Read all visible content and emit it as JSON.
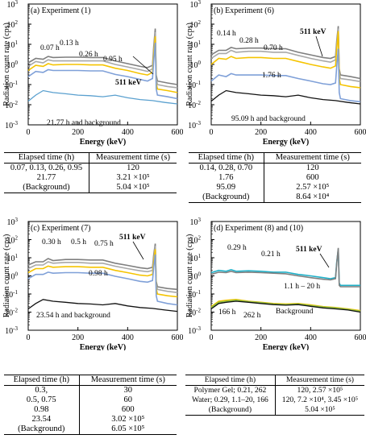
{
  "ylabel": "Radiation count rate (cps)",
  "xlabel": "Energy (keV)",
  "xticks": [
    "0",
    "200",
    "400",
    "600"
  ],
  "colors": {
    "dark": "#7f7f7f",
    "mid": "#a8a8a8",
    "gold": "#f5c400",
    "gold2": "#e6d96a",
    "blue": "#7fa0d8",
    "blue2": "#5aa0cf",
    "navy": "#2e5fa0",
    "cyan": "#1fb0c8",
    "green": "#8cbe44",
    "bg": "#111111"
  },
  "chart_data": [
    {
      "type": "line",
      "title": "(a) Experiment (1)",
      "xlabel": "Energy (keV)",
      "ylabel": "Radiation count rate (cps)",
      "xlim": [
        0,
        600
      ],
      "ylim": [
        0.001,
        1000
      ],
      "yscale": "log",
      "annotations": [
        "0.07 h",
        "0.13 h",
        "0.26 h",
        "0.95 h",
        "511 keV",
        "21.77 h and background"
      ],
      "series": [
        {
          "x": [
            0,
            30,
            60,
            80,
            100,
            150,
            200,
            250,
            300,
            350,
            400,
            450,
            480,
            500,
            505,
            511,
            515,
            520,
            560,
            600
          ],
          "y": [
            1.2,
            2,
            1.8,
            2.5,
            2.2,
            2.3,
            2.3,
            2.2,
            2.2,
            1.5,
            1.1,
            0.8,
            0.7,
            0.9,
            8,
            60,
            0.3,
            0.15,
            0.12,
            0.1
          ]
        },
        {
          "x": [
            0,
            30,
            60,
            80,
            100,
            150,
            200,
            250,
            300,
            350,
            400,
            450,
            480,
            500,
            505,
            511,
            515,
            520,
            560,
            600
          ],
          "y": [
            0.8,
            1.4,
            1.2,
            1.7,
            1.5,
            1.5,
            1.5,
            1.5,
            1.5,
            1,
            0.75,
            0.55,
            0.45,
            0.6,
            5,
            40,
            0.2,
            0.1,
            0.08,
            0.07
          ]
        },
        {
          "x": [
            0,
            30,
            60,
            80,
            100,
            150,
            200,
            250,
            300,
            350,
            400,
            450,
            480,
            500,
            505,
            511,
            515,
            520,
            560,
            600
          ],
          "y": [
            0.5,
            0.9,
            0.8,
            1.1,
            0.95,
            1,
            1,
            0.95,
            0.95,
            0.65,
            0.5,
            0.35,
            0.3,
            0.4,
            3,
            25,
            0.12,
            0.06,
            0.05,
            0.04
          ]
        },
        {
          "x": [
            0,
            30,
            60,
            80,
            100,
            150,
            200,
            250,
            300,
            350,
            400,
            450,
            480,
            500,
            505,
            511,
            515,
            520,
            560,
            600
          ],
          "y": [
            0.25,
            0.45,
            0.4,
            0.55,
            0.5,
            0.5,
            0.5,
            0.48,
            0.48,
            0.32,
            0.25,
            0.18,
            0.15,
            0.2,
            1.5,
            12,
            0.06,
            0.03,
            0.025,
            0.02
          ]
        },
        {
          "x": [
            0,
            30,
            60,
            100,
            150,
            200,
            250,
            300,
            350,
            400,
            450,
            500,
            550,
            600
          ],
          "y": [
            0.015,
            0.03,
            0.05,
            0.04,
            0.035,
            0.03,
            0.028,
            0.025,
            0.03,
            0.022,
            0.018,
            0.016,
            0.013,
            0.011
          ]
        }
      ]
    },
    {
      "type": "line",
      "title": "(b) Experiment (6)",
      "xlabel": "Energy (keV)",
      "ylabel": "Radiation count rate (cps)",
      "xlim": [
        0,
        600
      ],
      "ylim": [
        0.001,
        1000
      ],
      "yscale": "log",
      "annotations": [
        "0.14 h",
        "0.28 h",
        "0.70 h",
        "511 keV",
        "1.76 h",
        "95.09 h and background"
      ],
      "series": [
        {
          "x": [
            0,
            30,
            60,
            80,
            100,
            150,
            200,
            250,
            300,
            350,
            400,
            450,
            480,
            500,
            505,
            511,
            515,
            520,
            560,
            600
          ],
          "y": [
            3,
            5,
            5,
            7,
            6,
            6.5,
            6.5,
            6,
            6,
            4,
            3,
            2.2,
            2,
            2.5,
            15,
            80,
            0.6,
            0.3,
            0.25,
            0.2
          ]
        },
        {
          "x": [
            0,
            30,
            60,
            80,
            100,
            150,
            200,
            250,
            300,
            350,
            400,
            450,
            480,
            500,
            505,
            511,
            515,
            520,
            560,
            600
          ],
          "y": [
            2,
            3.5,
            3.5,
            5,
            4,
            4.5,
            4.5,
            4,
            4,
            2.8,
            2,
            1.5,
            1.3,
            1.7,
            10,
            60,
            0.4,
            0.2,
            0.17,
            0.14
          ]
        },
        {
          "x": [
            0,
            30,
            60,
            80,
            100,
            150,
            200,
            250,
            300,
            350,
            400,
            450,
            480,
            500,
            505,
            511,
            515,
            520,
            560,
            600
          ],
          "y": [
            1,
            2,
            1.8,
            2.5,
            2,
            2.2,
            2.2,
            2,
            2,
            1.4,
            1,
            0.75,
            0.65,
            0.85,
            6,
            45,
            0.2,
            0.1,
            0.08,
            0.07
          ]
        },
        {
          "x": [
            0,
            30,
            60,
            80,
            100,
            150,
            200,
            250,
            300,
            350,
            400,
            450,
            480,
            500,
            505,
            511,
            515,
            520,
            560,
            600
          ],
          "y": [
            0.15,
            0.3,
            0.25,
            0.35,
            0.3,
            0.3,
            0.3,
            0.28,
            0.28,
            0.2,
            0.15,
            0.11,
            0.1,
            0.12,
            0.8,
            6,
            0.04,
            0.02,
            0.016,
            0.014
          ]
        },
        {
          "x": [
            0,
            30,
            60,
            100,
            150,
            200,
            250,
            300,
            350,
            400,
            450,
            500,
            550,
            600
          ],
          "y": [
            0.015,
            0.03,
            0.05,
            0.04,
            0.035,
            0.03,
            0.028,
            0.025,
            0.03,
            0.022,
            0.018,
            0.016,
            0.013,
            0.011
          ]
        }
      ]
    },
    {
      "type": "line",
      "title": "(c) Experiment (7)",
      "xlabel": "Energy (keV)",
      "ylabel": "Radiation count rate (cps)",
      "xlim": [
        0,
        600
      ],
      "ylim": [
        0.001,
        1000
      ],
      "yscale": "log",
      "annotations": [
        "0.30 h",
        "0.5 h",
        "0.75 h",
        "511 keV",
        "0.98 h",
        "23.54 h and background"
      ],
      "series": [
        {
          "x": [
            0,
            30,
            60,
            80,
            100,
            150,
            200,
            250,
            300,
            350,
            400,
            450,
            480,
            500,
            505,
            511,
            515,
            520,
            560,
            600
          ],
          "y": [
            4,
            6,
            6,
            9,
            7,
            8,
            8,
            7.5,
            7.5,
            5,
            3.8,
            2.8,
            2.5,
            3,
            15,
            60,
            0.5,
            0.25,
            0.2,
            0.18
          ]
        },
        {
          "x": [
            0,
            30,
            60,
            80,
            100,
            150,
            200,
            250,
            300,
            350,
            400,
            450,
            480,
            500,
            505,
            511,
            515,
            520,
            560,
            600
          ],
          "y": [
            2.5,
            4,
            4,
            6,
            5,
            5.5,
            5.5,
            5,
            5,
            3.4,
            2.5,
            1.9,
            1.7,
            2,
            10,
            45,
            0.35,
            0.18,
            0.14,
            0.12
          ]
        },
        {
          "x": [
            0,
            30,
            60,
            80,
            100,
            150,
            200,
            250,
            300,
            350,
            400,
            450,
            480,
            500,
            505,
            511,
            515,
            520,
            560,
            600
          ],
          "y": [
            1.5,
            2.5,
            2.5,
            3.5,
            3,
            3.2,
            3.2,
            3,
            3,
            2,
            1.5,
            1.1,
            1,
            1.2,
            6,
            30,
            0.2,
            0.1,
            0.08,
            0.07
          ]
        },
        {
          "x": [
            0,
            30,
            60,
            80,
            100,
            150,
            200,
            250,
            300,
            350,
            400,
            450,
            480,
            500,
            505,
            511,
            515,
            520,
            560,
            600
          ],
          "y": [
            0.7,
            1.2,
            1.2,
            1.6,
            1.4,
            1.5,
            1.5,
            1.4,
            1.4,
            0.95,
            0.7,
            0.5,
            0.45,
            0.55,
            3,
            15,
            0.08,
            0.04,
            0.03,
            0.025
          ]
        },
        {
          "x": [
            0,
            30,
            60,
            100,
            150,
            200,
            250,
            300,
            350,
            400,
            450,
            500,
            550,
            600
          ],
          "y": [
            0.015,
            0.03,
            0.05,
            0.04,
            0.035,
            0.03,
            0.028,
            0.025,
            0.03,
            0.022,
            0.018,
            0.016,
            0.013,
            0.011
          ]
        }
      ]
    },
    {
      "type": "line",
      "title": "(d) Experiment (8) and (10)",
      "xlabel": "Energy (keV)",
      "ylabel": "Radiation count rate (cps)",
      "xlim": [
        0,
        600
      ],
      "ylim": [
        0.001,
        1000
      ],
      "yscale": "log",
      "annotations": [
        "0.29 h",
        "0.21 h",
        "511 keV",
        "1.1 h – 20 h",
        "166 h",
        "262 h",
        "Background"
      ],
      "series": [
        {
          "x": [
            0,
            30,
            60,
            80,
            100,
            150,
            200,
            250,
            300,
            350,
            400,
            450,
            480,
            500,
            505,
            511,
            515,
            520,
            560,
            600
          ],
          "y": [
            1.5,
            2,
            1.8,
            2.2,
            1.8,
            1.9,
            1.8,
            1.6,
            1.6,
            1.2,
            1,
            0.8,
            0.7,
            0.8,
            6,
            30,
            0.4,
            0.3,
            0.3,
            0.3
          ]
        },
        {
          "x": [
            0,
            30,
            60,
            80,
            100,
            150,
            200,
            250,
            300,
            350,
            400,
            450,
            480,
            500,
            505,
            511,
            515,
            520,
            560,
            600
          ],
          "y": [
            1.2,
            1.6,
            1.5,
            1.8,
            1.5,
            1.6,
            1.5,
            1.4,
            1.3,
            1,
            0.8,
            0.65,
            0.6,
            0.7,
            5,
            35,
            0.3,
            0.25,
            0.25,
            0.25
          ]
        },
        {
          "x": [
            0,
            30,
            60,
            100,
            150,
            200,
            250,
            300,
            350,
            400,
            450,
            500,
            550,
            600
          ],
          "y": [
            0.02,
            0.04,
            0.045,
            0.05,
            0.04,
            0.035,
            0.03,
            0.028,
            0.03,
            0.025,
            0.02,
            0.018,
            0.015,
            0.012
          ]
        },
        {
          "x": [
            0,
            30,
            60,
            100,
            150,
            200,
            250,
            300,
            350,
            400,
            450,
            500,
            550,
            600
          ],
          "y": [
            0.018,
            0.035,
            0.04,
            0.045,
            0.038,
            0.033,
            0.028,
            0.026,
            0.028,
            0.023,
            0.019,
            0.017,
            0.014,
            0.011
          ]
        },
        {
          "x": [
            0,
            30,
            60,
            100,
            150,
            200,
            250,
            300,
            350,
            400,
            450,
            500,
            550,
            600
          ],
          "y": [
            0.015,
            0.03,
            0.035,
            0.04,
            0.035,
            0.03,
            0.026,
            0.024,
            0.026,
            0.021,
            0.017,
            0.015,
            0.013,
            0.01
          ]
        }
      ]
    }
  ],
  "tables": [
    {
      "headers": [
        "Elapsed time (h)",
        "Measurement time (s)"
      ],
      "rows": [
        [
          "0.07, 0.13, 0.26, 0.95",
          "120"
        ],
        [
          "21.77",
          "3.21 ×10⁵"
        ],
        [
          "(Background)",
          "5.04 ×10⁵"
        ]
      ]
    },
    {
      "headers": [
        "Elapsed time (h)",
        "Measurement time (s)"
      ],
      "rows": [
        [
          "0.14, 0.28, 0.70",
          "120"
        ],
        [
          "1.76",
          "600"
        ],
        [
          "95.09",
          "2.57 ×10⁵"
        ],
        [
          "(Background)",
          "8.64 ×10⁴"
        ]
      ]
    },
    {
      "headers": [
        "Elapsed time (h)",
        "Measurement time (s)"
      ],
      "rows": [
        [
          "0.3,",
          "30"
        ],
        [
          "0.5, 0.75",
          "60"
        ],
        [
          "0.98",
          "600"
        ],
        [
          "23.54",
          "3.02 ×10⁵"
        ],
        [
          "(Background)",
          "6.05 ×10⁵"
        ]
      ]
    },
    {
      "headers": [
        "Elapsed time (h)",
        "Measurement time (s)"
      ],
      "rows": [
        [
          "Polymer Gel; 0.21, 262",
          "120, 2.57 ×10⁵"
        ],
        [
          "Water; 0.29, 1.1–20, 166",
          "120, 7.2 ×10⁴, 3.45 ×10⁵"
        ],
        [
          "(Background)",
          "5.04 ×10⁵"
        ]
      ]
    }
  ]
}
